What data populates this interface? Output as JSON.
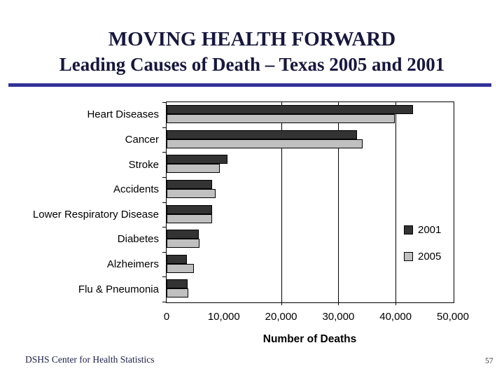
{
  "slide": {
    "title_line1": "MOVING HEALTH FORWARD",
    "title_line2": "Leading Causes of Death – Texas 2005 and 2001",
    "accent_color": "#333399",
    "footer_left": "DSHS Center for Health Statistics",
    "page_number": "57"
  },
  "chart_data": {
    "type": "bar",
    "orientation": "horizontal",
    "title": "",
    "categories": [
      "Heart Diseases",
      "Cancer",
      "Stroke",
      "Accidents",
      "Lower Respiratory Disease",
      "Diabetes",
      "Alzheimers",
      "Flu & Pneumonia"
    ],
    "series": [
      {
        "name": "2001",
        "color": "#333333",
        "values": [
          43000,
          33300,
          10600,
          7900,
          7900,
          5600,
          3500,
          3700
        ]
      },
      {
        "name": "2005",
        "color": "#c0c0c0",
        "values": [
          39900,
          34200,
          9300,
          8600,
          8000,
          5800,
          4800,
          3800
        ]
      }
    ],
    "xlabel": "Number of Deaths",
    "xlim": [
      0,
      50000
    ],
    "x_ticks": [
      "0",
      "10,000",
      "20,000",
      "30,000",
      "40,000",
      "50,000"
    ],
    "x_tick_values": [
      0,
      10000,
      20000,
      30000,
      40000,
      50000
    ],
    "gridlines": [
      20000,
      30000,
      40000
    ],
    "grid": "partial-vertical",
    "legend_position": "inside-right",
    "plot_border": "#000000"
  }
}
